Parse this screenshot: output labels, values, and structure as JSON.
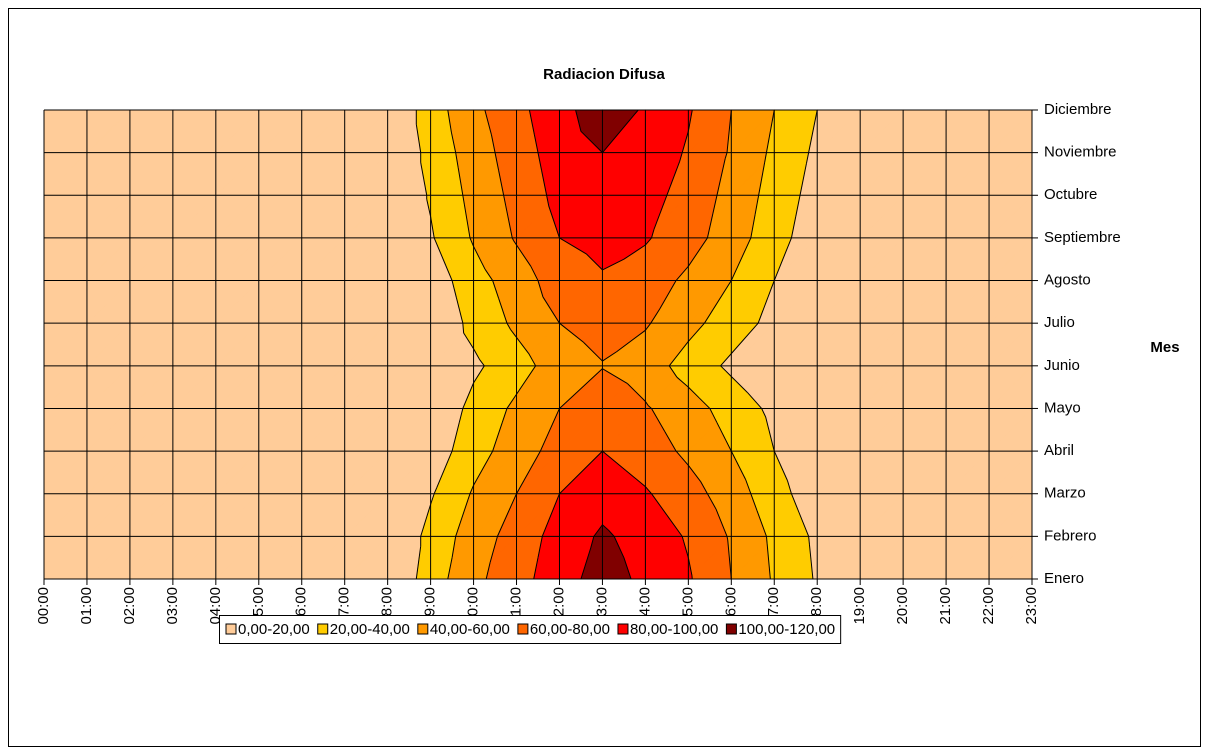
{
  "chart_data": {
    "type": "contour",
    "title": "Radiacion Difusa",
    "y_label": "Mes",
    "x": [
      "00:00",
      "01:00",
      "02:00",
      "03:00",
      "04:00",
      "05:00",
      "06:00",
      "07:00",
      "08:00",
      "09:00",
      "10:00",
      "11:00",
      "12:00",
      "13:00",
      "14:00",
      "15:00",
      "16:00",
      "17:00",
      "18:00",
      "19:00",
      "20:00",
      "21:00",
      "22:00",
      "23:00"
    ],
    "y": [
      "Enero",
      "Febrero",
      "Marzo",
      "Abril",
      "Mayo",
      "Junio",
      "Julio",
      "Agosto",
      "Septiembre",
      "Octubre",
      "Noviembre",
      "Diciembre"
    ],
    "z": [
      [
        0,
        0,
        0,
        0,
        0,
        0,
        0,
        0,
        0,
        30,
        55,
        72,
        92,
        108,
        96,
        82,
        60,
        38,
        18,
        0,
        0,
        0,
        0,
        0
      ],
      [
        0,
        0,
        0,
        0,
        0,
        0,
        0,
        0,
        0,
        26,
        50,
        68,
        88,
        103,
        92,
        78,
        58,
        36,
        16,
        0,
        0,
        0,
        0,
        0
      ],
      [
        0,
        0,
        0,
        0,
        0,
        0,
        0,
        0,
        0,
        18,
        42,
        60,
        80,
        92,
        82,
        68,
        50,
        28,
        8,
        0,
        0,
        0,
        0,
        0
      ],
      [
        0,
        0,
        0,
        0,
        0,
        0,
        0,
        0,
        0,
        8,
        32,
        50,
        68,
        80,
        70,
        56,
        40,
        20,
        2,
        0,
        0,
        0,
        0,
        0
      ],
      [
        0,
        0,
        0,
        0,
        0,
        0,
        0,
        0,
        0,
        2,
        26,
        44,
        60,
        74,
        62,
        48,
        32,
        15,
        0,
        0,
        0,
        0,
        0,
        0
      ],
      [
        0,
        0,
        0,
        0,
        0,
        0,
        0,
        0,
        0,
        0,
        16,
        32,
        50,
        59,
        50,
        32,
        16,
        0,
        0,
        0,
        0,
        0,
        0,
        0
      ],
      [
        0,
        0,
        0,
        0,
        0,
        0,
        0,
        0,
        0,
        2,
        26,
        44,
        60,
        68,
        62,
        46,
        30,
        14,
        0,
        0,
        0,
        0,
        0,
        0
      ],
      [
        0,
        0,
        0,
        0,
        0,
        0,
        0,
        0,
        0,
        8,
        32,
        50,
        70,
        78,
        70,
        56,
        40,
        20,
        2,
        0,
        0,
        0,
        0,
        0
      ],
      [
        0,
        0,
        0,
        0,
        0,
        0,
        0,
        0,
        0,
        18,
        42,
        62,
        80,
        86,
        82,
        68,
        50,
        28,
        8,
        0,
        0,
        0,
        0,
        0
      ],
      [
        0,
        0,
        0,
        0,
        0,
        0,
        0,
        0,
        0,
        22,
        46,
        66,
        86,
        94,
        88,
        72,
        54,
        32,
        12,
        0,
        0,
        0,
        0,
        0
      ],
      [
        0,
        0,
        0,
        0,
        0,
        0,
        0,
        0,
        0,
        26,
        50,
        70,
        90,
        100,
        92,
        78,
        58,
        36,
        16,
        0,
        0,
        0,
        0,
        0
      ],
      [
        0,
        0,
        0,
        0,
        0,
        0,
        0,
        0,
        0,
        30,
        55,
        74,
        94,
        110,
        98,
        82,
        60,
        40,
        20,
        0,
        0,
        0,
        0,
        0
      ]
    ],
    "levels": [
      0,
      20,
      40,
      60,
      80,
      100,
      120
    ],
    "series": [
      {
        "name": "0,00-20,00",
        "color": "#ffcc99"
      },
      {
        "name": "20,00-40,00",
        "color": "#ffcc00"
      },
      {
        "name": "40,00-60,00",
        "color": "#ff9900"
      },
      {
        "name": "60,00-80,00",
        "color": "#ff6600"
      },
      {
        "name": "80,00-100,00",
        "color": "#ff0000"
      },
      {
        "name": "100,00-120,00",
        "color": "#800000"
      }
    ]
  }
}
